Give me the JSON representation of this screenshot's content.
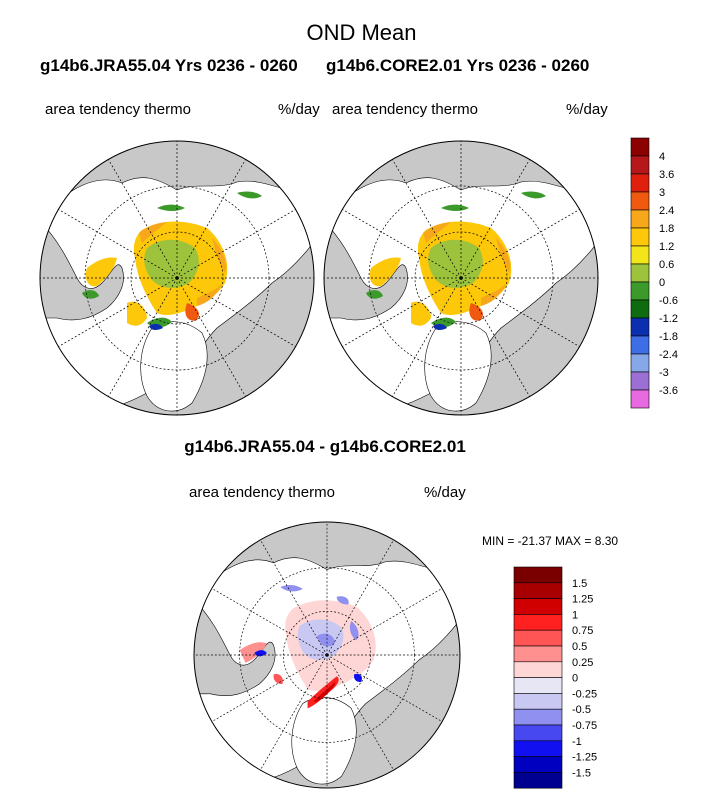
{
  "header": {
    "title": "OND Mean",
    "left_case": "g14b6.JRA55.04  Yrs 0236 - 0260",
    "right_case": "g14b6.CORE2.01  Yrs 0236 - 0260"
  },
  "panels": {
    "top_left": {
      "variable": "area tendency thermo",
      "units": "%/day"
    },
    "top_right": {
      "variable": "area tendency thermo",
      "units": "%/day"
    },
    "diff": {
      "title": "g14b6.JRA55.04 - g14b6.CORE2.01",
      "variable": "area tendency thermo",
      "units": "%/day",
      "minmax": "MIN = -21.37 MAX =   8.30"
    }
  },
  "chart_data": [
    {
      "type": "heatmap",
      "projection": "north polar stereographic",
      "title": "g14b6.JRA55.04  Yrs 0236 - 0260",
      "variable": "area tendency thermo",
      "units": "%/day",
      "colorbar": {
        "tick_labels": [
          "4",
          "3.6",
          "3",
          "2.4",
          "1.8",
          "1.2",
          "0.6",
          "0",
          "-0.6",
          "-1.2",
          "-1.8",
          "-2.4",
          "-3",
          "-3.6"
        ],
        "colors": [
          "#8b0000",
          "#b5171a",
          "#e0200f",
          "#f05a10",
          "#f7a71a",
          "#fdc70a",
          "#f2e51a",
          "#9cc33b",
          "#3c9a2a",
          "#0f6b10",
          "#0c2fb0",
          "#3d6ee6",
          "#86a7e8",
          "#9b6fd4",
          "#e86ae0"
        ]
      },
      "ice_regions": [
        {
          "category": "0 to 0.6",
          "region": "central Arctic"
        },
        {
          "category": "1.2 to 2.4",
          "region": "ice edge"
        }
      ]
    },
    {
      "type": "heatmap",
      "projection": "north polar stereographic",
      "title": "g14b6.CORE2.01  Yrs 0236 - 0260",
      "variable": "area tendency thermo",
      "units": "%/day"
    },
    {
      "type": "heatmap",
      "projection": "north polar stereographic",
      "title": "g14b6.JRA55.04 - g14b6.CORE2.01",
      "variable": "area tendency thermo",
      "units": "%/day",
      "min": -21.37,
      "max": 8.3,
      "colorbar": {
        "tick_labels": [
          "1.5",
          "1.25",
          "1",
          "0.75",
          "0.5",
          "0.25",
          "0",
          "-0.25",
          "-0.5",
          "-0.75",
          "-1",
          "-1.25",
          "-1.5"
        ],
        "colors": [
          "#7a0000",
          "#a80000",
          "#d00000",
          "#ff2020",
          "#ff5555",
          "#ff9090",
          "#ffd6d6",
          "#e6e6f5",
          "#c8c8f2",
          "#9090f0",
          "#4848f0",
          "#1010f0",
          "#0000c0",
          "#000090"
        ]
      }
    }
  ]
}
